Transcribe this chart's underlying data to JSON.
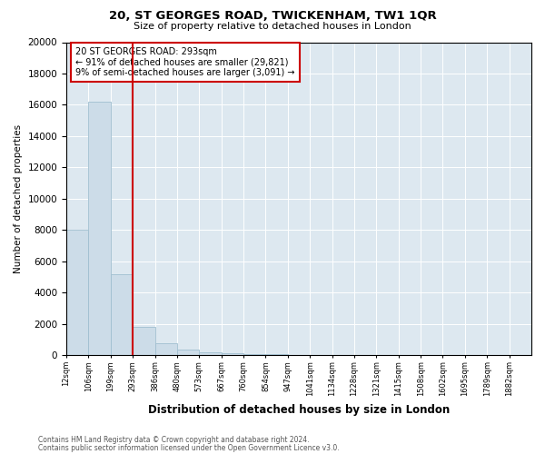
{
  "title": "20, ST GEORGES ROAD, TWICKENHAM, TW1 1QR",
  "subtitle": "Size of property relative to detached houses in London",
  "xlabel": "Distribution of detached houses by size in London",
  "ylabel": "Number of detached properties",
  "footnote1": "Contains HM Land Registry data © Crown copyright and database right 2024.",
  "footnote2": "Contains public sector information licensed under the Open Government Licence v3.0.",
  "annotation_line1": "20 ST GEORGES ROAD: 293sqm",
  "annotation_line2": "← 91% of detached houses are smaller (29,821)",
  "annotation_line3": "9% of semi-detached houses are larger (3,091) →",
  "property_bin_index": 3,
  "bar_color": "#ccdce8",
  "bar_edgecolor": "#a0bfd0",
  "redline_color": "#cc0000",
  "annotation_box_edgecolor": "#cc0000",
  "background_color": "#dde8f0",
  "ylim": [
    0,
    20000
  ],
  "yticks": [
    0,
    2000,
    4000,
    6000,
    8000,
    10000,
    12000,
    14000,
    16000,
    18000,
    20000
  ],
  "bin_labels": [
    "12sqm",
    "106sqm",
    "199sqm",
    "293sqm",
    "386sqm",
    "480sqm",
    "573sqm",
    "667sqm",
    "760sqm",
    "854sqm",
    "947sqm",
    "1041sqm",
    "1134sqm",
    "1228sqm",
    "1321sqm",
    "1415sqm",
    "1508sqm",
    "1602sqm",
    "1695sqm",
    "1789sqm",
    "1882sqm"
  ],
  "bar_heights": [
    8000,
    16200,
    5200,
    1800,
    800,
    350,
    175,
    125,
    100,
    75,
    0,
    0,
    0,
    0,
    0,
    0,
    0,
    0,
    0,
    0
  ]
}
